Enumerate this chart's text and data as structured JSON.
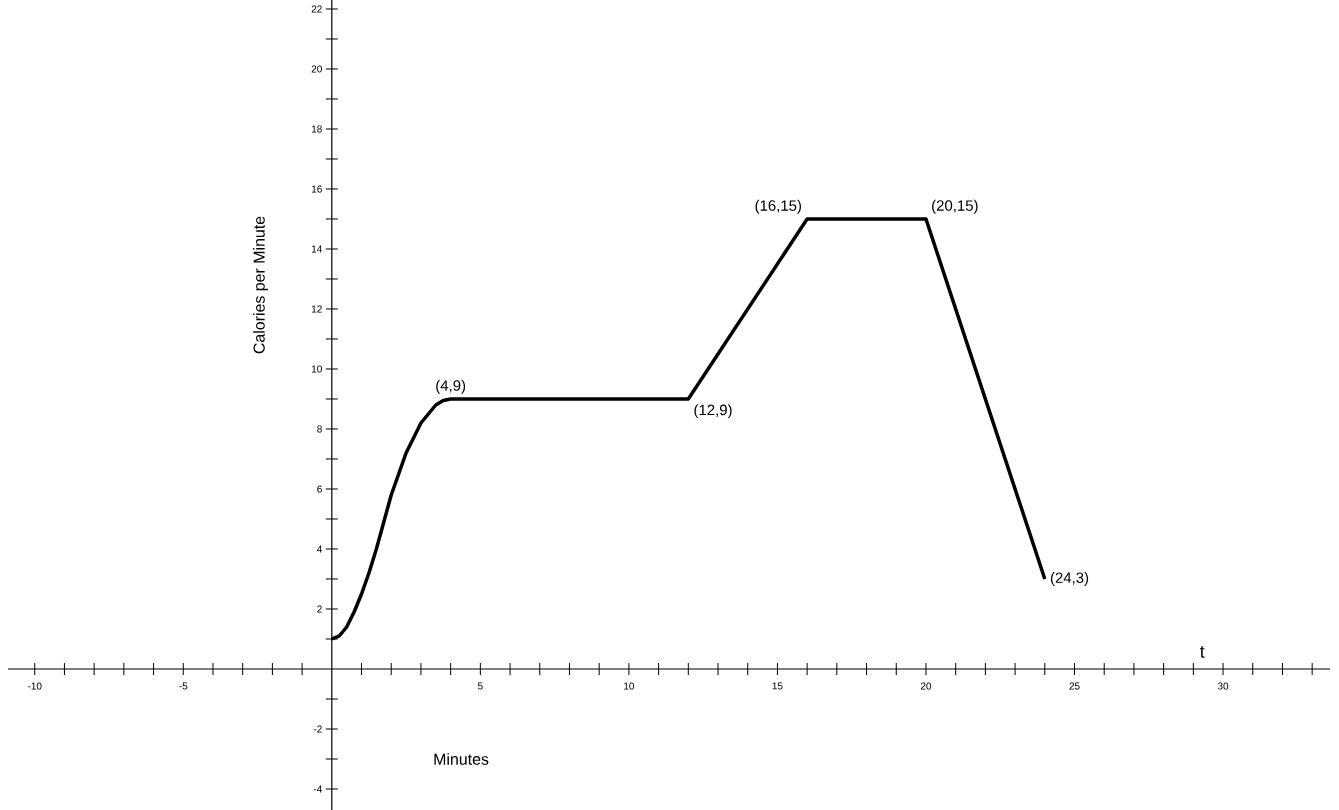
{
  "chart_data": {
    "type": "line",
    "xlabel": "Minutes",
    "ylabel": "Calories per Minute",
    "x": [
      0,
      0.25,
      0.5,
      0.75,
      1,
      1.25,
      1.5,
      1.75,
      2,
      2.25,
      2.5,
      2.75,
      3,
      3.25,
      3.5,
      3.75,
      4,
      12,
      16,
      20,
      24
    ],
    "series": [
      {
        "color": "#000000",
        "values": [
          1,
          1.1,
          1.4,
          1.9,
          2.5,
          3.2,
          4,
          4.9,
          5.8,
          6.5,
          7.2,
          7.7,
          8.2,
          8.5,
          8.8,
          8.95,
          9,
          9,
          15,
          15,
          3
        ]
      }
    ],
    "xlim": [
      -10.9,
      33.6
    ],
    "ylim": [
      -4.7,
      22.3
    ],
    "xticks": [
      -10,
      {
        "value": -9,
        "label": null
      },
      {
        "value": -8,
        "label": null
      },
      {
        "value": -7,
        "label": null
      },
      {
        "value": -6,
        "label": null
      },
      -5,
      {
        "value": -4,
        "label": null
      },
      {
        "value": -3,
        "label": null
      },
      {
        "value": -2,
        "label": null
      },
      {
        "value": -1,
        "label": null
      },
      {
        "value": 1,
        "label": null
      },
      {
        "value": 2,
        "label": null
      },
      {
        "value": 3,
        "label": null
      },
      {
        "value": 4,
        "label": null
      },
      5,
      {
        "value": 6,
        "label": null
      },
      {
        "value": 7,
        "label": null
      },
      {
        "value": 8,
        "label": null
      },
      {
        "value": 9,
        "label": null
      },
      10,
      {
        "value": 11,
        "label": null
      },
      {
        "value": 12,
        "label": null
      },
      {
        "value": 13,
        "label": null
      },
      {
        "value": 14,
        "label": null
      },
      15,
      {
        "value": 16,
        "label": null
      },
      {
        "value": 17,
        "label": null
      },
      {
        "value": 18,
        "label": null
      },
      {
        "value": 19,
        "label": null
      },
      20,
      {
        "value": 21,
        "label": null
      },
      {
        "value": 22,
        "label": null
      },
      {
        "value": 23,
        "label": null
      },
      {
        "value": 24,
        "label": null
      },
      25,
      {
        "value": 26,
        "label": null
      },
      {
        "value": 27,
        "label": null
      },
      {
        "value": 28,
        "label": null
      },
      {
        "value": 29,
        "label": null
      },
      30,
      {
        "value": 31,
        "label": null
      },
      {
        "value": 32,
        "label": null
      },
      {
        "value": 33,
        "label": null
      }
    ],
    "yticks": [
      -4,
      {
        "value": -3,
        "label": null
      },
      -2,
      {
        "value": -1,
        "label": null
      },
      {
        "value": 1,
        "label": null
      },
      2,
      {
        "value": 3,
        "label": null
      },
      4,
      {
        "value": 5,
        "label": null
      },
      6,
      {
        "value": 7,
        "label": null
      },
      8,
      {
        "value": 9,
        "label": null
      },
      10,
      {
        "value": 11,
        "label": null
      },
      12,
      {
        "value": 13,
        "label": null
      },
      14,
      {
        "value": 15,
        "label": null
      },
      16,
      {
        "value": 17,
        "label": null
      },
      18,
      {
        "value": 19,
        "label": null
      },
      20,
      {
        "value": 21,
        "label": null
      },
      22
    ],
    "grid": false,
    "annotations": [
      {
        "text": "(4,9)",
        "x": 4,
        "y": 9
      },
      {
        "text": "(12,9)",
        "x": 12,
        "y": 9
      },
      {
        "text": "(16,15)",
        "x": 16,
        "y": 15
      },
      {
        "text": "(20,15)",
        "x": 20,
        "y": 15
      },
      {
        "text": "(24,3)",
        "x": 24,
        "y": 3
      },
      "t"
    ]
  }
}
